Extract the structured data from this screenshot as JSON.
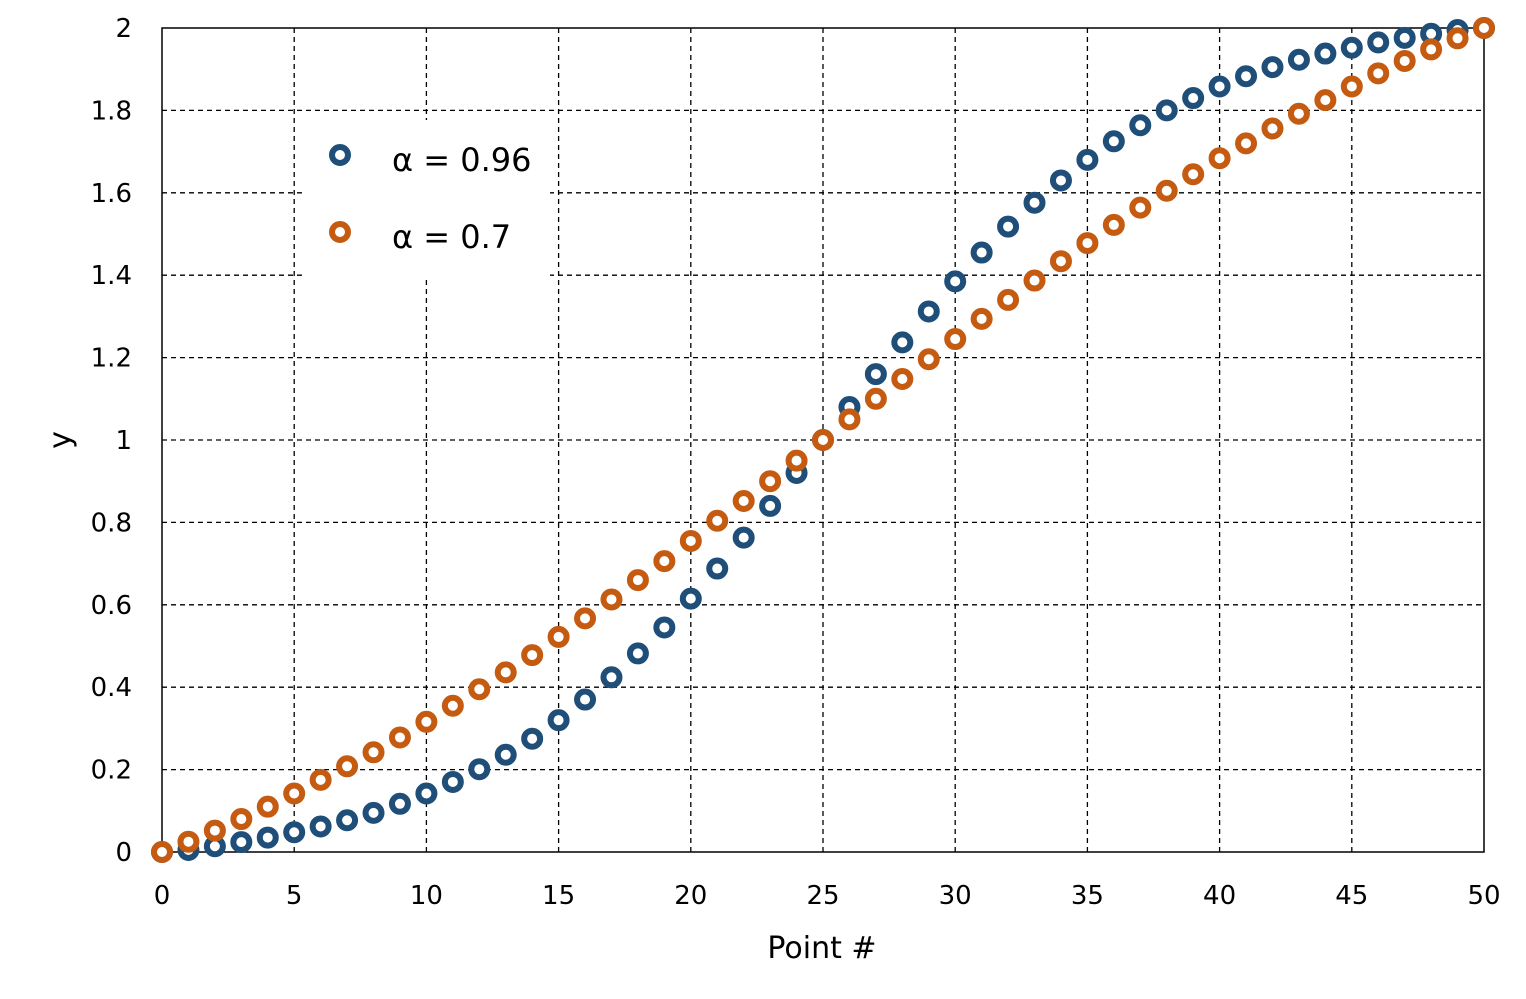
{
  "chart_data": {
    "type": "scatter",
    "xlabel": "Point #",
    "ylabel": "y",
    "xlim": [
      0,
      50
    ],
    "ylim": [
      0,
      2
    ],
    "x_ticks": [
      "0",
      "5",
      "10",
      "15",
      "20",
      "25",
      "30",
      "35",
      "40",
      "45",
      "50"
    ],
    "y_ticks": [
      "0",
      "0.2",
      "0.4",
      "0.6",
      "0.8",
      "1",
      "1.2",
      "1.4",
      "1.6",
      "1.8",
      "2"
    ],
    "grid": true,
    "legend_position": "top-left",
    "x": [
      0,
      1,
      2,
      3,
      4,
      5,
      6,
      7,
      8,
      9,
      10,
      11,
      12,
      13,
      14,
      15,
      16,
      17,
      18,
      19,
      20,
      21,
      22,
      23,
      24,
      25,
      26,
      27,
      28,
      29,
      30,
      31,
      32,
      33,
      34,
      35,
      36,
      37,
      38,
      39,
      40,
      41,
      42,
      43,
      44,
      45,
      46,
      47,
      48,
      49,
      50
    ],
    "series": [
      {
        "name": "α = 0.96",
        "color": "#1f4e79",
        "values": [
          0,
          0.005,
          0.014,
          0.024,
          0.035,
          0.048,
          0.062,
          0.077,
          0.095,
          0.117,
          0.142,
          0.17,
          0.201,
          0.236,
          0.275,
          0.32,
          0.37,
          0.424,
          0.482,
          0.545,
          0.615,
          0.688,
          0.763,
          0.84,
          0.92,
          1.0,
          1.08,
          1.16,
          1.237,
          1.312,
          1.385,
          1.455,
          1.518,
          1.576,
          1.63,
          1.68,
          1.725,
          1.764,
          1.8,
          1.83,
          1.858,
          1.883,
          1.905,
          1.923,
          1.938,
          1.952,
          1.965,
          1.976,
          1.986,
          1.995,
          2.0
        ]
      },
      {
        "name": "α = 0.7",
        "color": "#c55a11",
        "values": [
          0,
          0.025,
          0.052,
          0.08,
          0.11,
          0.142,
          0.175,
          0.208,
          0.242,
          0.278,
          0.316,
          0.355,
          0.395,
          0.436,
          0.478,
          0.522,
          0.567,
          0.613,
          0.66,
          0.706,
          0.755,
          0.804,
          0.852,
          0.9,
          0.95,
          1.0,
          1.05,
          1.1,
          1.148,
          1.196,
          1.245,
          1.294,
          1.34,
          1.387,
          1.434,
          1.478,
          1.522,
          1.564,
          1.605,
          1.645,
          1.684,
          1.72,
          1.756,
          1.792,
          1.825,
          1.858,
          1.89,
          1.92,
          1.948,
          1.975,
          2.0
        ]
      }
    ]
  }
}
